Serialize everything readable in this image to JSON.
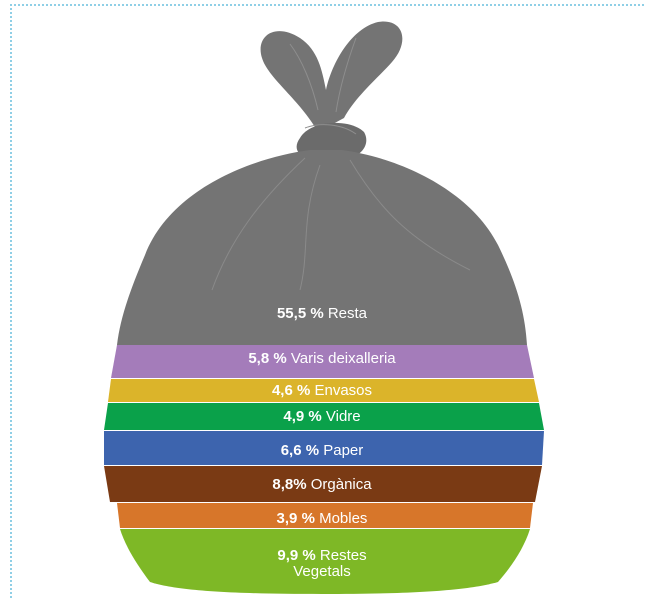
{
  "chart_data": {
    "type": "bar",
    "categories": [
      "Resta",
      "Varis deixalleria",
      "Envasos",
      "Vidre",
      "Paper",
      "Orgànica",
      "Mobles",
      "Restes Vegetals"
    ],
    "value_labels": [
      "55,5 %",
      "5,8 %",
      "4,6 %",
      "4,9 %",
      "6,6 %",
      "8,8%",
      "3,9 %",
      "9,9 %"
    ],
    "values": [
      55.5,
      5.8,
      4.6,
      4.9,
      6.6,
      8.8,
      3.9,
      9.9
    ],
    "colors": [
      "#747474",
      "#a47cba",
      "#dbb42a",
      "#0aa14a",
      "#3d64ae",
      "#7a3a14",
      "#d7762a",
      "#7eb826"
    ],
    "category_lines": [
      [
        "Resta"
      ],
      [
        "Varis deixalleria"
      ],
      [
        "Envasos"
      ],
      [
        "Vidre"
      ],
      [
        "Paper"
      ],
      [
        "Orgànica"
      ],
      [
        "Mobles"
      ],
      [
        "Restes",
        "Vegetals"
      ]
    ],
    "title": "",
    "xlabel": "",
    "ylabel": ""
  }
}
